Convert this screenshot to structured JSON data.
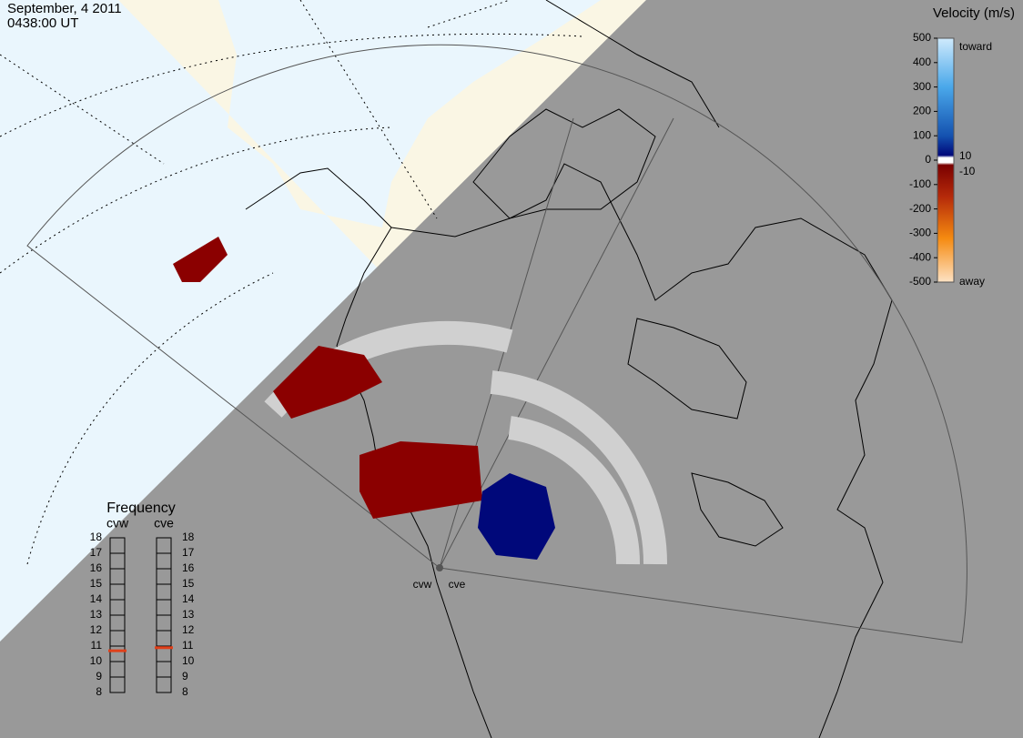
{
  "header": {
    "date": "September, 4 2011",
    "time": "0438:00 UT"
  },
  "velocity_scale": {
    "title": "Velocity (m/s)",
    "ticks": [
      500,
      400,
      300,
      200,
      100,
      0,
      -100,
      -200,
      -300,
      -400,
      -500
    ],
    "toward": "toward",
    "away": "away",
    "inner_labels": [
      10,
      -10
    ]
  },
  "frequency": {
    "title": "Frequency",
    "ticks": [
      18,
      17,
      16,
      15,
      14,
      13,
      12,
      11,
      10,
      9,
      8
    ],
    "radars": [
      {
        "name": "cvw",
        "value": 10.7
      },
      {
        "name": "cve",
        "value": 10.9
      }
    ]
  },
  "stations": [
    "cvw",
    "cve"
  ]
}
